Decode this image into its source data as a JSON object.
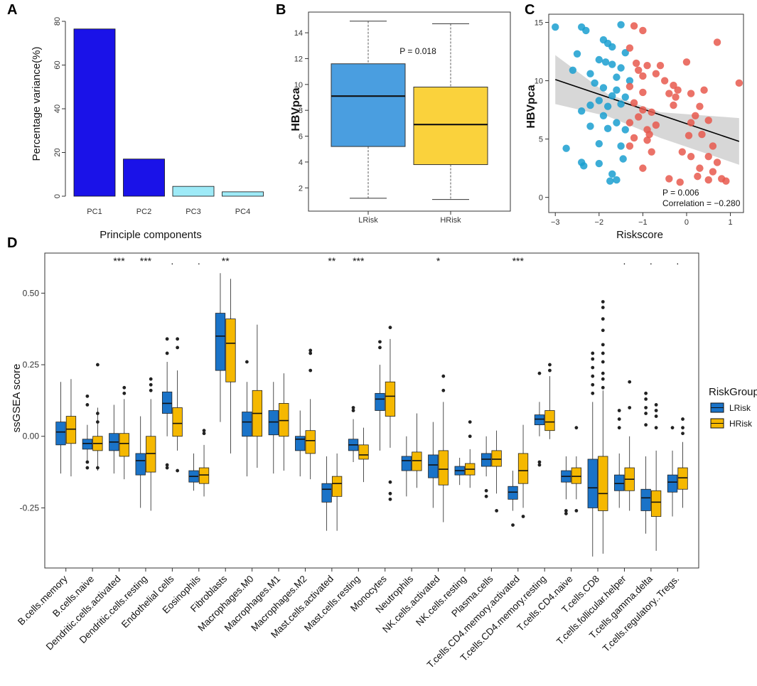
{
  "panels": {
    "a": "A",
    "b": "B",
    "c": "C",
    "d": "D"
  },
  "colors": {
    "bar_dark": "#1a12e8",
    "bar_light": "#9eeaf7",
    "lrisk": "#1a73c8",
    "hrisk": "#f5b800",
    "scatter_l": "#1a9fd0",
    "scatter_h": "#e8594e",
    "box_l_b": "#4a9ee0",
    "box_h_b": "#fad23c"
  },
  "chart_data": [
    {
      "id": "A",
      "type": "bar",
      "categories": [
        "PC1",
        "PC2",
        "PC3",
        "PC4"
      ],
      "values": [
        76.5,
        17,
        4.5,
        2
      ],
      "xlabel": "Principle components",
      "ylabel": "Percentage variance(%)",
      "ylim": [
        0,
        80
      ],
      "yticks": [
        0,
        20,
        40,
        60,
        80
      ]
    },
    {
      "id": "B",
      "type": "box",
      "categories": [
        "LRisk",
        "HRisk"
      ],
      "boxes": [
        {
          "min": 1.2,
          "q1": 5.2,
          "median": 9.1,
          "q3": 11.6,
          "max": 14.9
        },
        {
          "min": 1.1,
          "q1": 3.8,
          "median": 6.9,
          "q3": 9.8,
          "max": 14.7
        }
      ],
      "annotation": "P = 0.018",
      "ylabel": "HBVpca",
      "ylim": [
        0.2,
        15.6
      ],
      "yticks": [
        2,
        4,
        6,
        8,
        10,
        12,
        14
      ]
    },
    {
      "id": "C",
      "type": "scatter",
      "xlabel": "Riskscore",
      "ylabel": "HBVpca",
      "xlim": [
        -3.15,
        1.3
      ],
      "ylim": [
        -1.3,
        15.7
      ],
      "xticks": [
        -3,
        -2,
        -1,
        0,
        1
      ],
      "yticks": [
        0,
        5,
        10,
        15
      ],
      "annotation": [
        "P = 0.006",
        "Correlation = −0.280"
      ],
      "fit": {
        "x0": -3.0,
        "y0": 10.1,
        "x1": 1.2,
        "y1": 4.8
      },
      "series": [
        {
          "name": "LRisk",
          "points": [
            [
              -3.0,
              14.6
            ],
            [
              -2.4,
              14.6
            ],
            [
              -2.3,
              14.3
            ],
            [
              -1.5,
              14.8
            ],
            [
              -1.9,
              13.5
            ],
            [
              -1.8,
              13.2
            ],
            [
              -1.7,
              12.9
            ],
            [
              -2.5,
              12.3
            ],
            [
              -1.4,
              12.4
            ],
            [
              -2.0,
              11.8
            ],
            [
              -1.7,
              11.4
            ],
            [
              -1.85,
              11.6
            ],
            [
              -1.5,
              11.1
            ],
            [
              -2.6,
              10.9
            ],
            [
              -2.2,
              10.6
            ],
            [
              -1.6,
              10.3
            ],
            [
              -1.3,
              10.0
            ],
            [
              -2.1,
              9.8
            ],
            [
              -1.9,
              9.4
            ],
            [
              -1.6,
              9.2
            ],
            [
              -2.0,
              8.3
            ],
            [
              -1.7,
              8.7
            ],
            [
              -1.4,
              8.6
            ],
            [
              -1.5,
              8.0
            ],
            [
              -2.2,
              7.9
            ],
            [
              -1.8,
              7.8
            ],
            [
              -2.4,
              7.4
            ],
            [
              -1.9,
              7.0
            ],
            [
              -1.6,
              6.4
            ],
            [
              -2.2,
              6.1
            ],
            [
              -1.8,
              5.9
            ],
            [
              -1.4,
              5.8
            ],
            [
              -2.0,
              4.6
            ],
            [
              -1.5,
              4.4
            ],
            [
              -2.75,
              4.2
            ],
            [
              -1.45,
              3.3
            ],
            [
              -2.4,
              3.0
            ],
            [
              -2.0,
              2.9
            ],
            [
              -1.7,
              2.0
            ],
            [
              -1.6,
              1.5
            ],
            [
              -1.75,
              1.4
            ],
            [
              -2.35,
              2.7
            ]
          ]
        },
        {
          "name": "HRisk",
          "points": [
            [
              -1.2,
              14.7
            ],
            [
              -1.0,
              14.3
            ],
            [
              0.7,
              13.3
            ],
            [
              -1.3,
              12.8
            ],
            [
              -1.15,
              11.5
            ],
            [
              -0.9,
              11.3
            ],
            [
              -0.6,
              11.3
            ],
            [
              0.0,
              11.6
            ],
            [
              -1.1,
              10.9
            ],
            [
              -0.7,
              10.6
            ],
            [
              -1.0,
              10.4
            ],
            [
              -0.5,
              10.0
            ],
            [
              -0.3,
              9.6
            ],
            [
              -1.3,
              9.5
            ],
            [
              -1.0,
              9.0
            ],
            [
              -0.2,
              9.2
            ],
            [
              -0.4,
              8.9
            ],
            [
              -0.25,
              8.6
            ],
            [
              0.1,
              8.9
            ],
            [
              0.4,
              9.2
            ],
            [
              -1.2,
              8.1
            ],
            [
              -0.3,
              7.9
            ],
            [
              0.3,
              7.8
            ],
            [
              -1.0,
              7.5
            ],
            [
              -0.8,
              7.3
            ],
            [
              -1.1,
              6.9
            ],
            [
              0.2,
              7.0
            ],
            [
              0.5,
              6.6
            ],
            [
              -1.3,
              6.4
            ],
            [
              -0.7,
              6.2
            ],
            [
              0.1,
              6.4
            ],
            [
              -0.9,
              5.8
            ],
            [
              0.35,
              5.4
            ],
            [
              -1.2,
              5.1
            ],
            [
              -0.85,
              5.4
            ],
            [
              0.05,
              5.3
            ],
            [
              -0.9,
              4.9
            ],
            [
              0.6,
              4.4
            ],
            [
              -1.3,
              4.4
            ],
            [
              -0.8,
              3.9
            ],
            [
              -0.1,
              3.9
            ],
            [
              0.1,
              3.5
            ],
            [
              0.5,
              3.5
            ],
            [
              0.7,
              3.0
            ],
            [
              -1.0,
              2.5
            ],
            [
              0.3,
              2.5
            ],
            [
              0.6,
              2.2
            ],
            [
              0.8,
              1.6
            ],
            [
              -0.4,
              1.6
            ],
            [
              0.25,
              1.8
            ],
            [
              0.9,
              1.4
            ],
            [
              -0.15,
              1.3
            ],
            [
              0.5,
              1.5
            ],
            [
              1.2,
              9.8
            ]
          ]
        }
      ]
    },
    {
      "id": "D",
      "type": "box",
      "ylabel": "ssGSEA score",
      "ylim": [
        -0.46,
        0.64
      ],
      "yticks": [
        -0.25,
        0.0,
        0.25,
        0.5
      ],
      "ytick_labels": [
        "-0.25",
        "0.00",
        "0.25",
        "0.50"
      ],
      "legend_title": "RiskGroup",
      "legend": [
        "LRisk",
        "HRisk"
      ],
      "categories": [
        "B.cells.memory",
        "B.cells.naive",
        "Dendritic.cells.activated",
        "Dendritic.cells.resting",
        "Endothelial cells",
        "Eosinophils",
        "Fibroblasts",
        "Macrophages.M0",
        "Macrophages.M1",
        "Macrophages.M2",
        "Mast.cells.activated",
        "Mast.cells.resting",
        "Monocytes",
        "Neutrophils",
        "NK.cells.activated",
        "NK.cells.resting",
        "Plasma.cells",
        "T.cells.CD4.memory.activated",
        "T.cells.CD4.memory.resting",
        "T.cells.CD4.naive",
        "T.cells.CD8",
        "T.cells.follicular.helper",
        "T.cells.gamma.delta",
        "T.cells.regulatory..Tregs."
      ],
      "significance": [
        "",
        "",
        "***",
        "***",
        ".",
        ".",
        "**",
        "",
        "",
        "",
        "**",
        "***",
        "",
        "",
        "*",
        "",
        "",
        "***",
        "",
        "",
        "",
        ".",
        ".",
        "."
      ],
      "series": [
        {
          "name": "LRisk",
          "boxes": [
            [
              -0.13,
              -0.03,
              0.015,
              0.05,
              0.19
            ],
            [
              -0.09,
              -0.045,
              -0.025,
              -0.01,
              0.04
            ],
            [
              -0.13,
              -0.05,
              -0.02,
              0.01,
              0.11
            ],
            [
              -0.25,
              -0.135,
              -0.085,
              -0.06,
              0.07
            ],
            [
              0.0,
              0.08,
              0.115,
              0.155,
              0.26
            ],
            [
              -0.19,
              -0.16,
              -0.14,
              -0.12,
              -0.06
            ],
            [
              0.05,
              0.23,
              0.35,
              0.43,
              0.57
            ],
            [
              -0.14,
              0.0,
              0.05,
              0.085,
              0.19
            ],
            [
              -0.13,
              0.005,
              0.05,
              0.09,
              0.19
            ],
            [
              -0.14,
              -0.05,
              -0.01,
              0.0,
              0.09
            ],
            [
              -0.33,
              -0.23,
              -0.185,
              -0.165,
              -0.07
            ],
            [
              -0.09,
              -0.05,
              -0.03,
              -0.01,
              0.06
            ],
            [
              -0.05,
              0.09,
              0.13,
              0.15,
              0.25
            ],
            [
              -0.21,
              -0.12,
              -0.085,
              -0.07,
              0.0
            ],
            [
              -0.25,
              -0.145,
              -0.1,
              -0.065,
              0.05
            ],
            [
              -0.17,
              -0.135,
              -0.12,
              -0.105,
              -0.075
            ],
            [
              -0.14,
              -0.105,
              -0.08,
              -0.06,
              0.0
            ],
            [
              -0.26,
              -0.22,
              -0.195,
              -0.175,
              -0.12
            ],
            [
              0.0,
              0.04,
              0.06,
              0.075,
              0.12
            ],
            [
              -0.22,
              -0.16,
              -0.14,
              -0.12,
              -0.07
            ],
            [
              -0.42,
              -0.25,
              -0.18,
              -0.08,
              0.12
            ],
            [
              -0.25,
              -0.19,
              -0.165,
              -0.135,
              -0.06
            ],
            [
              -0.34,
              -0.26,
              -0.215,
              -0.185,
              -0.07
            ],
            [
              -0.28,
              -0.195,
              -0.16,
              -0.135,
              -0.05
            ]
          ]
        },
        {
          "name": "HRisk",
          "boxes": [
            [
              -0.14,
              -0.025,
              0.025,
              0.07,
              0.2
            ],
            [
              -0.12,
              -0.05,
              -0.025,
              0.0,
              0.1
            ],
            [
              -0.15,
              -0.07,
              -0.025,
              0.01,
              0.13
            ],
            [
              -0.26,
              -0.125,
              -0.06,
              0.0,
              0.13
            ],
            [
              -0.05,
              0.0,
              0.045,
              0.1,
              0.23
            ],
            [
              -0.21,
              -0.165,
              -0.135,
              -0.11,
              -0.03
            ],
            [
              -0.06,
              0.19,
              0.325,
              0.41,
              0.55
            ],
            [
              -0.11,
              0.0,
              0.08,
              0.16,
              0.39
            ],
            [
              -0.12,
              0.0,
              0.055,
              0.115,
              0.22
            ],
            [
              -0.15,
              -0.06,
              -0.015,
              0.02,
              0.13
            ],
            [
              -0.33,
              -0.21,
              -0.165,
              -0.14,
              -0.06
            ],
            [
              -0.16,
              -0.08,
              -0.065,
              -0.03,
              0.03
            ],
            [
              -0.04,
              0.07,
              0.14,
              0.19,
              0.34
            ],
            [
              -0.18,
              -0.12,
              -0.085,
              -0.055,
              0.08
            ],
            [
              -0.3,
              -0.17,
              -0.115,
              -0.05,
              0.12
            ],
            [
              -0.18,
              -0.135,
              -0.115,
              -0.095,
              -0.045
            ],
            [
              -0.2,
              -0.105,
              -0.08,
              -0.05,
              0.02
            ],
            [
              -0.25,
              -0.165,
              -0.12,
              -0.06,
              0.04
            ],
            [
              -0.01,
              0.02,
              0.05,
              0.09,
              0.21
            ],
            [
              -0.22,
              -0.165,
              -0.14,
              -0.11,
              -0.07
            ],
            [
              -0.41,
              -0.26,
              -0.2,
              -0.07,
              0.16
            ],
            [
              -0.26,
              -0.19,
              -0.15,
              -0.11,
              0.0
            ],
            [
              -0.4,
              -0.28,
              -0.23,
              -0.19,
              -0.05
            ],
            [
              -0.25,
              -0.185,
              -0.145,
              -0.11,
              -0.02
            ]
          ]
        }
      ]
    }
  ]
}
